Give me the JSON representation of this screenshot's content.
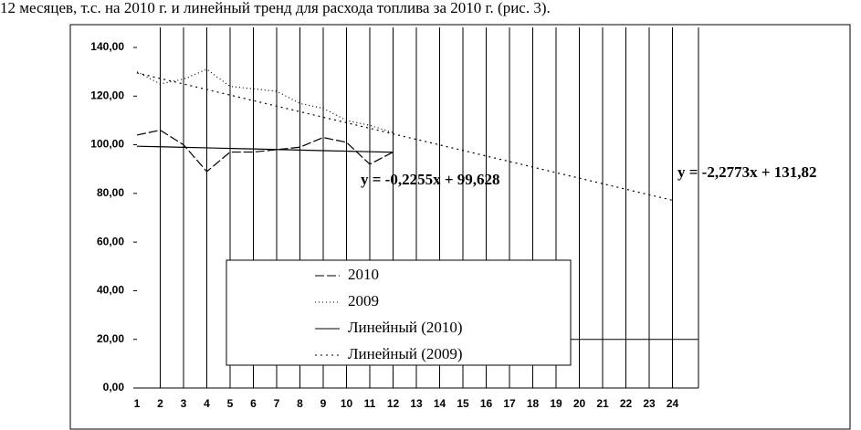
{
  "page_text": "12 месяцев, т.с. на 2010 г. и линейный тренд для расхода топлива за 2010 г. (рис. 3).",
  "chart_data": {
    "type": "line",
    "categories": [
      "1",
      "2",
      "3",
      "4",
      "5",
      "6",
      "7",
      "8",
      "9",
      "10",
      "11",
      "12",
      "13",
      "14",
      "15",
      "16",
      "17",
      "18",
      "19",
      "20",
      "21",
      "22",
      "23",
      "24"
    ],
    "ylim": [
      0,
      140
    ],
    "yticks": [
      {
        "value": 0,
        "label": "0,00"
      },
      {
        "value": 20,
        "label": "20,00"
      },
      {
        "value": 40,
        "label": "40,00"
      },
      {
        "value": 60,
        "label": "60,00"
      },
      {
        "value": 80,
        "label": "80,00"
      },
      {
        "value": 100,
        "label": "100,00"
      },
      {
        "value": 120,
        "label": "120,00"
      },
      {
        "value": 140,
        "label": "140,00"
      }
    ],
    "series": [
      {
        "name": "2010",
        "color": "#000000",
        "dash": "10 3",
        "values": [
          104,
          106,
          100,
          89,
          97,
          97,
          98,
          99,
          103,
          101,
          92,
          97,
          null,
          null,
          null,
          null,
          null,
          null,
          null,
          null,
          null,
          null,
          null,
          null
        ]
      },
      {
        "name": "2009",
        "color": "#000000",
        "dash": "1 3",
        "values": [
          130,
          125,
          127,
          131,
          124,
          123,
          122,
          117,
          115,
          110,
          108,
          105,
          null,
          null,
          null,
          null,
          null,
          null,
          null,
          null,
          null,
          null,
          null,
          null
        ]
      },
      {
        "name": "Линейный (2010)",
        "color": "#000000",
        "dash": "",
        "values": [
          99.4,
          99.18,
          98.95,
          98.73,
          98.5,
          98.28,
          98.05,
          97.82,
          97.6,
          97.37,
          97.15,
          96.92,
          null,
          null,
          null,
          null,
          null,
          null,
          null,
          null,
          null,
          null,
          null,
          null
        ]
      },
      {
        "name": "Линейный (2009)",
        "color": "#000000",
        "dash": "2 4",
        "values": [
          129.54,
          127.27,
          124.99,
          122.71,
          120.43,
          118.16,
          115.88,
          113.6,
          111.32,
          109.05,
          106.77,
          104.49,
          102.22,
          99.94,
          97.66,
          95.38,
          93.11,
          90.83,
          88.55,
          86.27,
          84.0,
          81.72,
          79.44,
          77.17
        ]
      }
    ],
    "annotations": [
      "y = -0,2255x + 99,628",
      "y = -2,2773x + 131,82"
    ]
  }
}
